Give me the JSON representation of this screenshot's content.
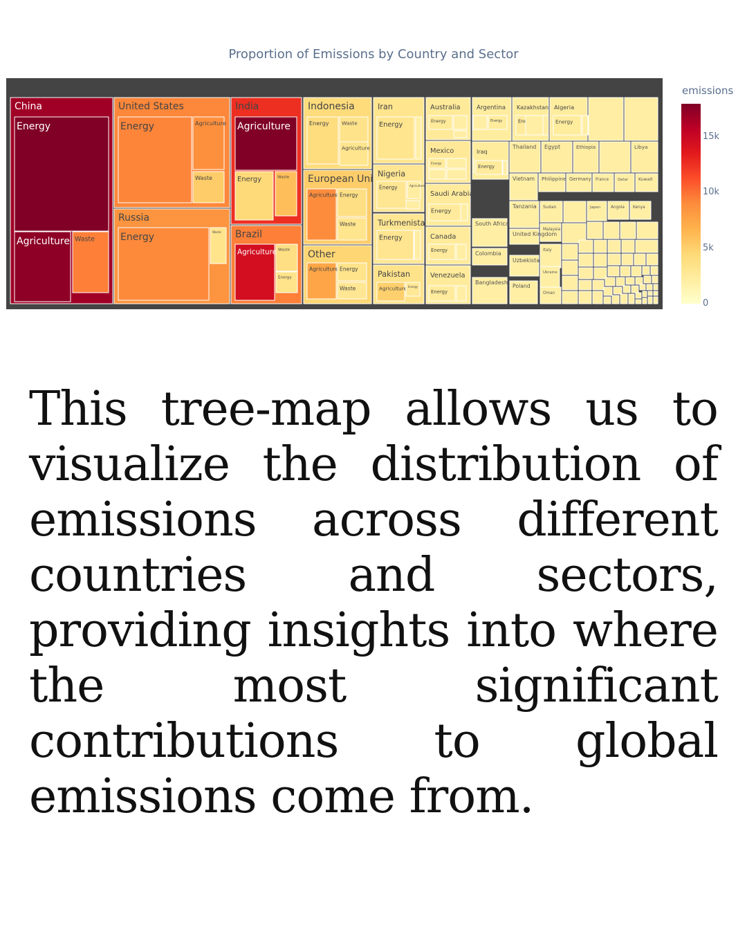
{
  "chart_data": {
    "type": "treemap",
    "title": "Proportion of Emissions by Country and Sector",
    "colorbar": {
      "title": "emissions",
      "range": [
        0,
        18000
      ],
      "ticks": [
        {
          "value": 15000,
          "label": "15k"
        },
        {
          "value": 10000,
          "label": "10k"
        },
        {
          "value": 5000,
          "label": "5k"
        },
        {
          "value": 0,
          "label": "0"
        }
      ],
      "colors": [
        "#ffffcc",
        "#ffeda0",
        "#fed976",
        "#feb24c",
        "#fd8d3c",
        "#fc4e2a",
        "#e31a1c",
        "#bd0026",
        "#800026"
      ]
    },
    "countries": [
      {
        "name": "China",
        "emissions": 16800,
        "sectors": [
          {
            "name": "Energy",
            "emissions": 18000
          },
          {
            "name": "Agriculture",
            "emissions": 17500
          },
          {
            "name": "Waste",
            "emissions": 9500
          }
        ]
      },
      {
        "name": "United States",
        "emissions": 9200,
        "sectors": [
          {
            "name": "Energy",
            "emissions": 9300
          },
          {
            "name": "Agriculture",
            "emissions": 8800
          },
          {
            "name": "Waste",
            "emissions": 5200
          }
        ]
      },
      {
        "name": "Russia",
        "emissions": 8600,
        "sectors": [
          {
            "name": "Energy",
            "emissions": 9100
          },
          {
            "name": "Waste",
            "emissions": 3300
          },
          {
            "name": "Agriculture",
            "emissions": 3000
          }
        ]
      },
      {
        "name": "India",
        "emissions": 12600,
        "sectors": [
          {
            "name": "Agriculture",
            "emissions": 18000
          },
          {
            "name": "Energy",
            "emissions": 4400
          },
          {
            "name": "Waste",
            "emissions": 6000
          }
        ]
      },
      {
        "name": "Brazil",
        "emissions": 9500,
        "sectors": [
          {
            "name": "Agriculture",
            "emissions": 14500
          },
          {
            "name": "Waste",
            "emissions": 3800
          },
          {
            "name": "Energy",
            "emissions": 3300
          }
        ]
      },
      {
        "name": "Indonesia",
        "emissions": 4200,
        "sectors": [
          {
            "name": "Energy",
            "emissions": 4000
          },
          {
            "name": "Waste",
            "emissions": 3400
          },
          {
            "name": "Agriculture",
            "emissions": 3200
          }
        ]
      },
      {
        "name": "European Union",
        "emissions": 5200,
        "sectors": [
          {
            "name": "Agriculture",
            "emissions": 9000
          },
          {
            "name": "Energy",
            "emissions": 3800
          },
          {
            "name": "Waste",
            "emissions": 3200
          }
        ]
      },
      {
        "name": "Other",
        "emissions": 4600,
        "sectors": [
          {
            "name": "Agriculture",
            "emissions": 7500
          },
          {
            "name": "Energy",
            "emissions": 3300
          },
          {
            "name": "Waste",
            "emissions": 3000
          }
        ]
      },
      {
        "name": "Iran",
        "emissions": 3200,
        "sectors": [
          {
            "name": "Energy",
            "emissions": 3200
          }
        ]
      },
      {
        "name": "Nigeria",
        "emissions": 3000,
        "sectors": [
          {
            "name": "Energy",
            "emissions": 3000
          },
          {
            "name": "Agriculture",
            "emissions": 2200
          }
        ]
      },
      {
        "name": "Turkmenistan",
        "emissions": 3000,
        "sectors": [
          {
            "name": "Energy",
            "emissions": 3100
          },
          {
            "name": "Waste",
            "emissions": 2800
          }
        ]
      },
      {
        "name": "Pakistan",
        "emissions": 3400,
        "sectors": [
          {
            "name": "Agriculture",
            "emissions": 5000
          },
          {
            "name": "Energy",
            "emissions": 2800
          }
        ]
      },
      {
        "name": "Australia",
        "emissions": 2600,
        "sectors": [
          {
            "name": "Energy",
            "emissions": 2600
          }
        ]
      },
      {
        "name": "Mexico",
        "emissions": 2700,
        "sectors": [
          {
            "name": "Energy",
            "emissions": 2600
          }
        ]
      },
      {
        "name": "Saudi Arabia",
        "emissions": 2500,
        "sectors": [
          {
            "name": "Energy",
            "emissions": 2500
          }
        ]
      },
      {
        "name": "Canada",
        "emissions": 2500,
        "sectors": [
          {
            "name": "Energy",
            "emissions": 2500
          }
        ]
      },
      {
        "name": "Venezuela",
        "emissions": 2500,
        "sectors": [
          {
            "name": "Energy",
            "emissions": 2500
          }
        ]
      },
      {
        "name": "Argentina",
        "emissions": 2300,
        "sectors": [
          {
            "name": "Energy",
            "emissions": 2400
          }
        ]
      },
      {
        "name": "Kazakhstan",
        "emissions": 2300,
        "sectors": [
          {
            "name": "Energy",
            "emissions": 2500
          }
        ]
      },
      {
        "name": "Algeria",
        "emissions": 2300,
        "sectors": [
          {
            "name": "Energy",
            "emissions": 2400
          }
        ]
      },
      {
        "name": "Iraq",
        "emissions": 2400,
        "sectors": [
          {
            "name": "Energy",
            "emissions": 2500
          }
        ]
      },
      {
        "name": "Thailand",
        "emissions": 2200
      },
      {
        "name": "Egypt",
        "emissions": 2200
      },
      {
        "name": "Ethiopia",
        "emissions": 2200
      },
      {
        "name": "Libya",
        "emissions": 2200
      },
      {
        "name": "South Africa",
        "emissions": 2100
      },
      {
        "name": "Colombia",
        "emissions": 2100
      },
      {
        "name": "Bangladesh",
        "emissions": 2100
      },
      {
        "name": "Vietnam",
        "emissions": 2000
      },
      {
        "name": "Philippines",
        "emissions": 2000
      },
      {
        "name": "Germany",
        "emissions": 2000
      },
      {
        "name": "France",
        "emissions": 2000
      },
      {
        "name": "Qatar",
        "emissions": 2000
      },
      {
        "name": "Kuwait",
        "emissions": 2000
      },
      {
        "name": "Tanzania",
        "emissions": 2000
      },
      {
        "name": "Sudan",
        "emissions": 2000
      },
      {
        "name": "Japan",
        "emissions": 2000
      },
      {
        "name": "Angola",
        "emissions": 2000
      },
      {
        "name": "Kenya",
        "emissions": 2000
      },
      {
        "name": "Uzbekistan",
        "emissions": 2000
      },
      {
        "name": "Italy",
        "emissions": 2000
      },
      {
        "name": "Ukraine",
        "emissions": 2000
      },
      {
        "name": "Poland",
        "emissions": 2000
      },
      {
        "name": "Oman",
        "emissions": 2000
      },
      {
        "name": "Malaysia",
        "emissions": 2000
      },
      {
        "name": "United Kingdom",
        "emissions": 2000
      }
    ]
  },
  "caption": "This tree-map allows us to visualize the distribution of emissions across different countries and sectors, providing insights into where the most significant contributions to global emissions come from."
}
